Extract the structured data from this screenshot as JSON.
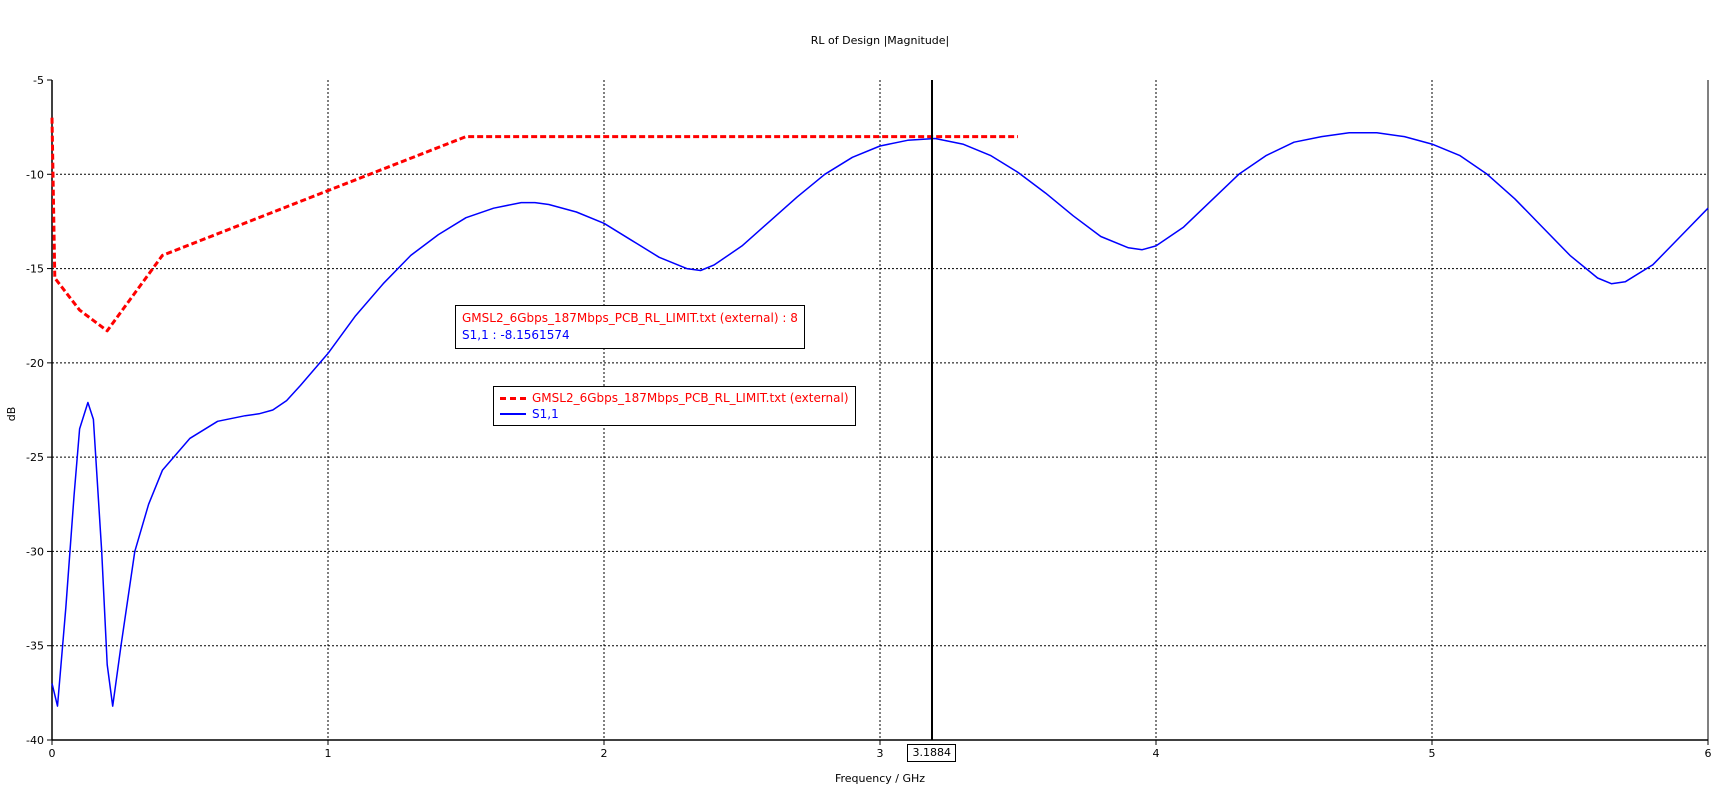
{
  "chart_data": {
    "type": "line",
    "title": "RL of Design |Magnitude|",
    "xlabel": "Frequency / GHz",
    "ylabel": "dB",
    "xlim": [
      0,
      6
    ],
    "ylim": [
      -40,
      -5
    ],
    "x_ticks": [
      "0",
      "1",
      "2",
      "3",
      "4",
      "5",
      "6"
    ],
    "y_ticks": [
      "-5",
      "-10",
      "-15",
      "-20",
      "-25",
      "-30",
      "-35",
      "-40"
    ],
    "grid": true,
    "legend_position": "center",
    "marker": {
      "x": 3.1884,
      "x_label": "3.1884"
    },
    "readout": {
      "limit_line": "GMSL2_6Gbps_187Mbps_PCB_RL_LIMIT.txt (external) :  8",
      "s11_line": "S1,1 : -8.1561574"
    },
    "series": [
      {
        "name": "GMSL2_6Gbps_187Mbps_PCB_RL_LIMIT.txt (external)",
        "color": "#ff0000",
        "style": "dashed",
        "points": [
          [
            0.0,
            -7.0
          ],
          [
            0.01,
            -15.5
          ],
          [
            0.1,
            -17.2
          ],
          [
            0.2,
            -18.3
          ],
          [
            0.4,
            -14.3
          ],
          [
            1.5,
            -8.0
          ],
          [
            3.5,
            -8.0
          ]
        ]
      },
      {
        "name": "S1,1",
        "color": "#0000ff",
        "style": "solid",
        "points": [
          [
            0.0,
            -37.0
          ],
          [
            0.02,
            -38.2
          ],
          [
            0.05,
            -33.0
          ],
          [
            0.08,
            -27.0
          ],
          [
            0.1,
            -23.5
          ],
          [
            0.13,
            -22.1
          ],
          [
            0.15,
            -23.0
          ],
          [
            0.18,
            -30.0
          ],
          [
            0.2,
            -36.0
          ],
          [
            0.22,
            -38.2
          ],
          [
            0.25,
            -35.0
          ],
          [
            0.3,
            -30.0
          ],
          [
            0.35,
            -27.5
          ],
          [
            0.4,
            -25.7
          ],
          [
            0.5,
            -24.0
          ],
          [
            0.6,
            -23.1
          ],
          [
            0.7,
            -22.8
          ],
          [
            0.75,
            -22.7
          ],
          [
            0.8,
            -22.5
          ],
          [
            0.85,
            -22.0
          ],
          [
            0.9,
            -21.2
          ],
          [
            1.0,
            -19.5
          ],
          [
            1.1,
            -17.5
          ],
          [
            1.2,
            -15.8
          ],
          [
            1.3,
            -14.3
          ],
          [
            1.4,
            -13.2
          ],
          [
            1.5,
            -12.3
          ],
          [
            1.6,
            -11.8
          ],
          [
            1.7,
            -11.5
          ],
          [
            1.75,
            -11.5
          ],
          [
            1.8,
            -11.6
          ],
          [
            1.9,
            -12.0
          ],
          [
            2.0,
            -12.6
          ],
          [
            2.1,
            -13.5
          ],
          [
            2.2,
            -14.4
          ],
          [
            2.3,
            -15.0
          ],
          [
            2.35,
            -15.1
          ],
          [
            2.4,
            -14.8
          ],
          [
            2.5,
            -13.8
          ],
          [
            2.6,
            -12.5
          ],
          [
            2.7,
            -11.2
          ],
          [
            2.8,
            -10.0
          ],
          [
            2.9,
            -9.1
          ],
          [
            3.0,
            -8.5
          ],
          [
            3.1,
            -8.2
          ],
          [
            3.2,
            -8.1
          ],
          [
            3.3,
            -8.4
          ],
          [
            3.4,
            -9.0
          ],
          [
            3.5,
            -9.9
          ],
          [
            3.6,
            -11.0
          ],
          [
            3.7,
            -12.2
          ],
          [
            3.8,
            -13.3
          ],
          [
            3.9,
            -13.9
          ],
          [
            3.95,
            -14.0
          ],
          [
            4.0,
            -13.8
          ],
          [
            4.1,
            -12.8
          ],
          [
            4.2,
            -11.4
          ],
          [
            4.3,
            -10.0
          ],
          [
            4.4,
            -9.0
          ],
          [
            4.5,
            -8.3
          ],
          [
            4.6,
            -8.0
          ],
          [
            4.7,
            -7.8
          ],
          [
            4.75,
            -7.8
          ],
          [
            4.8,
            -7.8
          ],
          [
            4.9,
            -8.0
          ],
          [
            5.0,
            -8.4
          ],
          [
            5.1,
            -9.0
          ],
          [
            5.2,
            -10.0
          ],
          [
            5.3,
            -11.3
          ],
          [
            5.4,
            -12.8
          ],
          [
            5.5,
            -14.3
          ],
          [
            5.6,
            -15.5
          ],
          [
            5.65,
            -15.8
          ],
          [
            5.7,
            -15.7
          ],
          [
            5.8,
            -14.8
          ],
          [
            5.9,
            -13.3
          ],
          [
            6.0,
            -11.8
          ]
        ]
      }
    ]
  }
}
